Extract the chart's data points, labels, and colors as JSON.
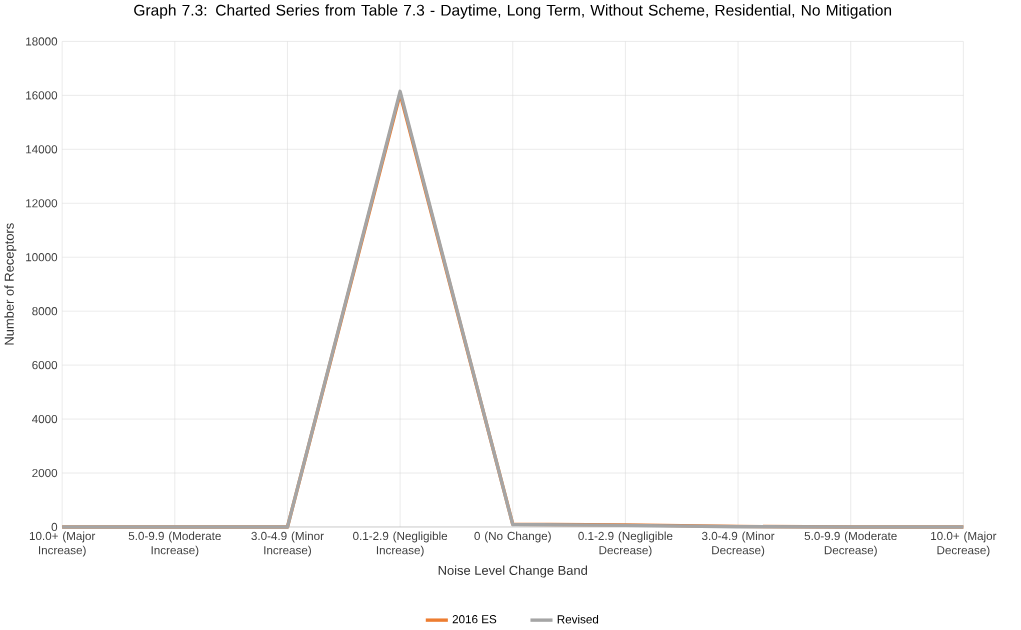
{
  "chart_data": {
    "type": "line",
    "title": "Graph 7.3: Charted Series from Table 7.3 - Daytime, Long Term, Without Scheme,  Residential, No Mitigation",
    "xlabel": "Noise Level Change Band",
    "ylabel": "Number of Receptors",
    "categories": [
      "10.0+ (Major Increase)",
      "5.0-9.9 (Moderate Increase)",
      "3.0-4.9 (Minor Increase)",
      "0.1-2.9 (Negligible Increase)",
      "0 (No Change)",
      "0.1-2.9 (Negligible Decrease)",
      "3.0-4.9 (Minor Decrease)",
      "5.0-9.9 (Moderate Decrease)",
      "10.0+ (Major Decrease)"
    ],
    "series": [
      {
        "name": "2016 ES",
        "color": "#ed7d31",
        "values": [
          0,
          0,
          0,
          16050,
          100,
          80,
          20,
          0,
          0
        ]
      },
      {
        "name": "Revised",
        "color": "#a5a5a5",
        "values": [
          0,
          0,
          0,
          16150,
          90,
          60,
          10,
          0,
          0
        ]
      }
    ],
    "ylim": [
      0,
      18000
    ],
    "yticks": [
      0,
      2000,
      4000,
      6000,
      8000,
      10000,
      12000,
      14000,
      16000,
      18000
    ],
    "grid": true,
    "legend": "bottom",
    "line_style": "solid"
  }
}
